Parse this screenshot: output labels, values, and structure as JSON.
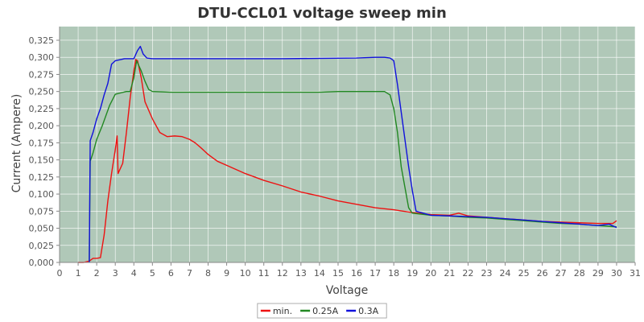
{
  "chart_data": {
    "type": "line",
    "title": "DTU-CCL01 voltage sweep min",
    "xlabel": "Voltage",
    "ylabel": "Current (Ampere)",
    "xlim": [
      0,
      31
    ],
    "ylim": [
      0,
      0.345
    ],
    "x_ticks": [
      0,
      1,
      2,
      3,
      4,
      5,
      6,
      7,
      8,
      9,
      10,
      11,
      12,
      13,
      14,
      15,
      16,
      17,
      18,
      19,
      20,
      21,
      22,
      23,
      24,
      25,
      26,
      27,
      28,
      29,
      30,
      31
    ],
    "y_ticks": [
      0,
      0.025,
      0.05,
      0.075,
      0.1,
      0.125,
      0.15,
      0.175,
      0.2,
      0.225,
      0.25,
      0.275,
      0.3,
      0.325
    ],
    "y_tick_labels": [
      "0,000",
      "0,025",
      "0,050",
      "0,075",
      "0,100",
      "0,125",
      "0,150",
      "0,175",
      "0,200",
      "0,225",
      "0,250",
      "0,275",
      "0,300",
      "0,325"
    ],
    "grid": true,
    "legend_position": "bottom-center",
    "background_color": "#b0c8b8",
    "grid_color": "#ffffff",
    "series": [
      {
        "name": "min.",
        "color": "#ee1111",
        "points": [
          [
            1.0,
            0.0
          ],
          [
            1.3,
            0.0
          ],
          [
            1.6,
            0.002
          ],
          [
            1.8,
            0.006
          ],
          [
            2.0,
            0.006
          ],
          [
            2.2,
            0.007
          ],
          [
            2.4,
            0.04
          ],
          [
            2.6,
            0.09
          ],
          [
            2.8,
            0.13
          ],
          [
            3.0,
            0.165
          ],
          [
            3.1,
            0.185
          ],
          [
            3.15,
            0.13
          ],
          [
            3.4,
            0.145
          ],
          [
            3.6,
            0.19
          ],
          [
            3.8,
            0.24
          ],
          [
            4.0,
            0.28
          ],
          [
            4.1,
            0.297
          ],
          [
            4.2,
            0.295
          ],
          [
            4.4,
            0.27
          ],
          [
            4.6,
            0.235
          ],
          [
            5.0,
            0.21
          ],
          [
            5.4,
            0.19
          ],
          [
            5.8,
            0.184
          ],
          [
            6.2,
            0.185
          ],
          [
            6.6,
            0.184
          ],
          [
            7.0,
            0.18
          ],
          [
            7.3,
            0.175
          ],
          [
            7.6,
            0.168
          ],
          [
            8.0,
            0.158
          ],
          [
            8.5,
            0.148
          ],
          [
            9.0,
            0.142
          ],
          [
            9.5,
            0.136
          ],
          [
            10.0,
            0.13
          ],
          [
            11.0,
            0.12
          ],
          [
            12.0,
            0.112
          ],
          [
            13.0,
            0.103
          ],
          [
            14.0,
            0.097
          ],
          [
            15.0,
            0.09
          ],
          [
            16.0,
            0.085
          ],
          [
            17.0,
            0.08
          ],
          [
            18.0,
            0.077
          ],
          [
            19.0,
            0.073
          ],
          [
            20.0,
            0.07
          ],
          [
            21.0,
            0.069
          ],
          [
            21.5,
            0.072
          ],
          [
            22.0,
            0.068
          ],
          [
            23.0,
            0.066
          ],
          [
            24.0,
            0.064
          ],
          [
            25.0,
            0.062
          ],
          [
            26.0,
            0.06
          ],
          [
            27.0,
            0.059
          ],
          [
            28.0,
            0.058
          ],
          [
            29.0,
            0.057
          ],
          [
            29.8,
            0.057
          ],
          [
            30.0,
            0.061
          ]
        ]
      },
      {
        "name": "0.25A",
        "color": "#228822",
        "points": [
          [
            1.6,
            0.0
          ],
          [
            1.65,
            0.148
          ],
          [
            1.8,
            0.16
          ],
          [
            2.0,
            0.18
          ],
          [
            2.3,
            0.2
          ],
          [
            2.5,
            0.215
          ],
          [
            2.7,
            0.23
          ],
          [
            3.0,
            0.246
          ],
          [
            3.3,
            0.248
          ],
          [
            3.6,
            0.25
          ],
          [
            3.8,
            0.25
          ],
          [
            4.0,
            0.27
          ],
          [
            4.15,
            0.295
          ],
          [
            4.4,
            0.28
          ],
          [
            4.6,
            0.265
          ],
          [
            4.8,
            0.253
          ],
          [
            5.0,
            0.25
          ],
          [
            6.0,
            0.249
          ],
          [
            8.0,
            0.249
          ],
          [
            10.0,
            0.249
          ],
          [
            12.0,
            0.249
          ],
          [
            14.0,
            0.249
          ],
          [
            15.0,
            0.25
          ],
          [
            16.0,
            0.25
          ],
          [
            17.0,
            0.25
          ],
          [
            17.5,
            0.25
          ],
          [
            17.8,
            0.245
          ],
          [
            18.0,
            0.225
          ],
          [
            18.2,
            0.19
          ],
          [
            18.4,
            0.14
          ],
          [
            18.6,
            0.11
          ],
          [
            18.8,
            0.08
          ],
          [
            19.0,
            0.072
          ],
          [
            20.0,
            0.069
          ],
          [
            21.0,
            0.068
          ],
          [
            22.0,
            0.066
          ],
          [
            23.0,
            0.065
          ],
          [
            24.0,
            0.063
          ],
          [
            25.0,
            0.061
          ],
          [
            26.0,
            0.059
          ],
          [
            27.0,
            0.057
          ],
          [
            28.0,
            0.056
          ],
          [
            29.0,
            0.054
          ],
          [
            30.0,
            0.052
          ]
        ]
      },
      {
        "name": "0.3A",
        "color": "#1111dd",
        "points": [
          [
            1.6,
            0.0
          ],
          [
            1.65,
            0.178
          ],
          [
            1.8,
            0.19
          ],
          [
            2.0,
            0.21
          ],
          [
            2.2,
            0.225
          ],
          [
            2.4,
            0.245
          ],
          [
            2.6,
            0.262
          ],
          [
            2.8,
            0.29
          ],
          [
            3.0,
            0.295
          ],
          [
            3.5,
            0.298
          ],
          [
            4.0,
            0.298
          ],
          [
            4.2,
            0.31
          ],
          [
            4.35,
            0.316
          ],
          [
            4.5,
            0.305
          ],
          [
            4.7,
            0.299
          ],
          [
            5.0,
            0.298
          ],
          [
            8.0,
            0.298
          ],
          [
            12.0,
            0.298
          ],
          [
            16.0,
            0.299
          ],
          [
            17.0,
            0.3
          ],
          [
            17.5,
            0.3
          ],
          [
            17.8,
            0.299
          ],
          [
            18.0,
            0.295
          ],
          [
            18.2,
            0.26
          ],
          [
            18.5,
            0.2
          ],
          [
            18.8,
            0.14
          ],
          [
            19.0,
            0.105
          ],
          [
            19.2,
            0.075
          ],
          [
            20.0,
            0.069
          ],
          [
            21.0,
            0.068
          ],
          [
            22.0,
            0.067
          ],
          [
            23.0,
            0.066
          ],
          [
            24.0,
            0.064
          ],
          [
            25.0,
            0.062
          ],
          [
            26.0,
            0.06
          ],
          [
            27.0,
            0.058
          ],
          [
            28.0,
            0.056
          ],
          [
            29.0,
            0.054
          ],
          [
            29.6,
            0.056
          ],
          [
            30.0,
            0.051
          ]
        ]
      }
    ]
  }
}
